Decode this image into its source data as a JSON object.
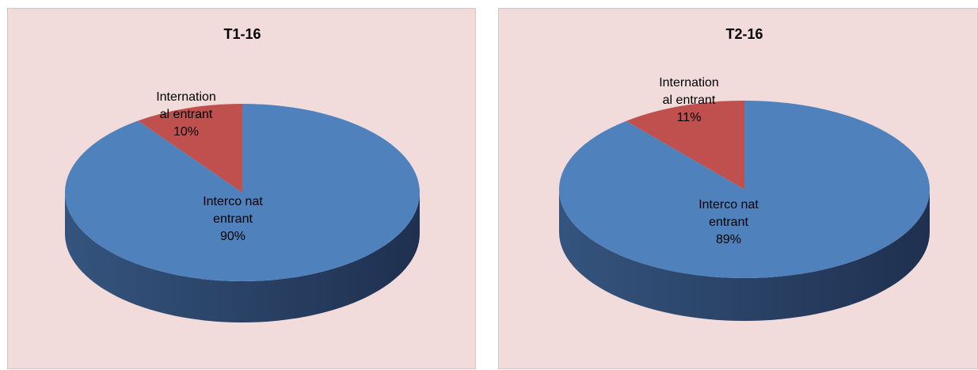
{
  "colors": {
    "panel_background": "#f2dcdb",
    "domestic_top": "#4f81bd",
    "domestic_side_dark": "#1f3050",
    "domestic_side_mid": "#34547e",
    "international_top": "#c0504d",
    "international_side": "#7a2e2c"
  },
  "chart_data": [
    {
      "type": "pie",
      "style": "3d",
      "title": "T1-16",
      "slices": [
        {
          "label": [
            "Interco nat",
            "entrant"
          ],
          "value": 90,
          "value_label": "90%"
        },
        {
          "label": [
            "Internation",
            "al entrant"
          ],
          "value": 10,
          "value_label": "10%"
        }
      ],
      "legend": "none"
    },
    {
      "type": "pie",
      "style": "3d",
      "title": "T2-16",
      "slices": [
        {
          "label": [
            "Interco nat",
            "entrant"
          ],
          "value": 89,
          "value_label": "89%"
        },
        {
          "label": [
            "Internation",
            "al entrant"
          ],
          "value": 11,
          "value_label": "11%"
        }
      ],
      "legend": "none"
    }
  ]
}
